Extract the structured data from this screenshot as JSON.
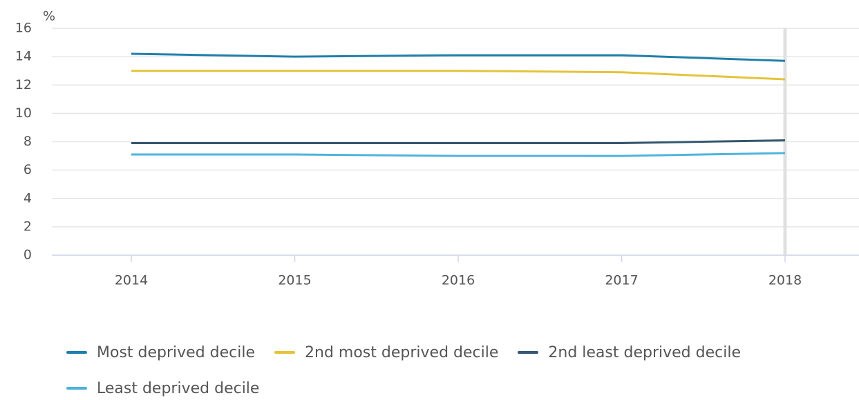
{
  "chart_data": {
    "type": "line",
    "y_label": "%",
    "categories": [
      "2014",
      "2015",
      "2016",
      "2017",
      "2018"
    ],
    "series": [
      {
        "name": "Most deprived decile",
        "color": "#1f7fab",
        "values": [
          14.2,
          14.0,
          14.1,
          14.1,
          13.7
        ]
      },
      {
        "name": "2nd most deprived decile",
        "color": "#e5c33b",
        "values": [
          13.0,
          13.0,
          13.0,
          12.9,
          12.4
        ]
      },
      {
        "name": "2nd least deprived decile",
        "color": "#34566f",
        "values": [
          7.9,
          7.9,
          7.9,
          7.9,
          8.1
        ]
      },
      {
        "name": "Least deprived decile",
        "color": "#4db3dc",
        "values": [
          7.1,
          7.1,
          7.0,
          7.0,
          7.2
        ]
      }
    ],
    "ylim": [
      0,
      16
    ],
    "yticks": [
      0,
      2,
      4,
      6,
      8,
      10,
      12,
      14,
      16
    ],
    "grid": true
  }
}
